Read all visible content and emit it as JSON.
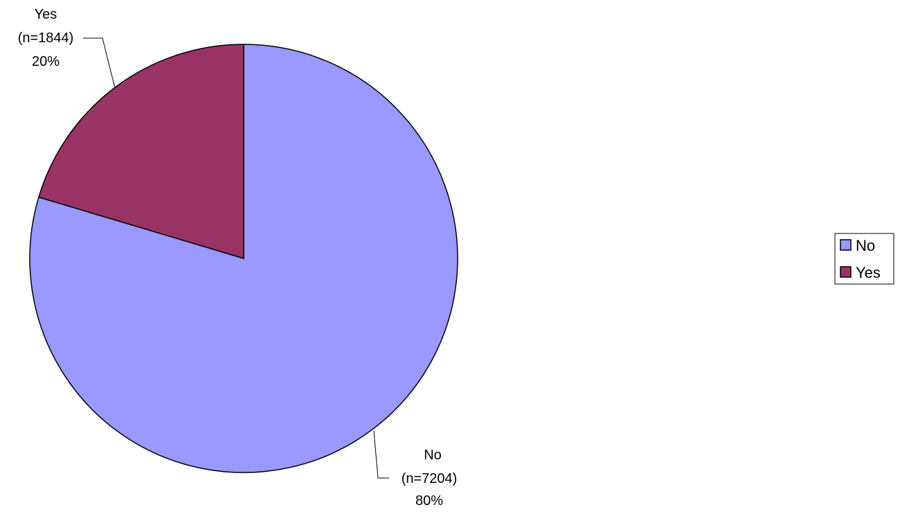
{
  "chart_data": {
    "type": "pie",
    "slices": [
      {
        "label": "No",
        "count_label": "(n=7204)",
        "percent_label": "80%",
        "value": 7204,
        "color": "#9999FF"
      },
      {
        "label": "Yes",
        "count_label": "(n=1844)",
        "percent_label": "20%",
        "value": 1844,
        "color": "#993366"
      }
    ],
    "legend": {
      "placement": "right",
      "items": [
        {
          "label": "No",
          "color": "#9999FF"
        },
        {
          "label": "Yes",
          "color": "#993366"
        }
      ]
    }
  }
}
